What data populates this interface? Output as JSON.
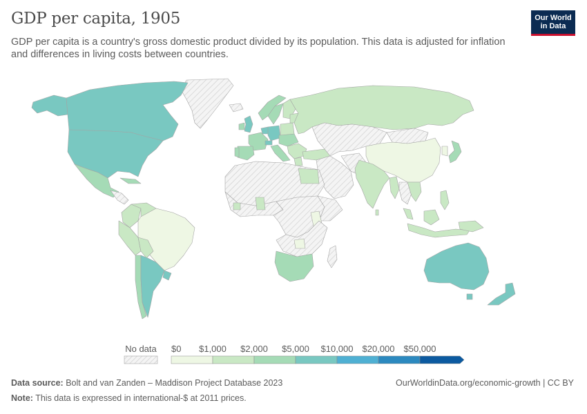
{
  "title": "GDP per capita, 1905",
  "subtitle": "GDP per capita is a country's gross domestic product divided by its population. This data is adjusted for inflation and differences in living costs between countries.",
  "logo": {
    "line1": "Our World",
    "line2": "in Data"
  },
  "legend": {
    "no_data_label": "No data",
    "bins": [
      {
        "label": "$0",
        "color": "#eef7e4"
      },
      {
        "label": "$1,000",
        "color": "#c9e8c4"
      },
      {
        "label": "$2,000",
        "color": "#a5dbb6"
      },
      {
        "label": "$5,000",
        "color": "#79c8c1"
      },
      {
        "label": "$10,000",
        "color": "#4fb0d3"
      },
      {
        "label": "$20,000",
        "color": "#2c89bf"
      },
      {
        "label": "$50,000",
        "color": "#0c5aa0"
      }
    ]
  },
  "footer": {
    "source_label": "Data source:",
    "source_text": "Bolt and van Zanden – Maddison Project Database 2023",
    "note_label": "Note:",
    "note_text": "This data is expressed in international-$ at 2011 prices.",
    "url": "OurWorldinData.org/economic-growth",
    "license": "CC BY"
  },
  "colors": {
    "no_data": "#f2f2f2",
    "low": "#eef7e4",
    "lowmid": "#c9e8c4",
    "mid": "#a5dbb6",
    "high": "#79c8c1",
    "border": "#9a9a9a"
  }
}
